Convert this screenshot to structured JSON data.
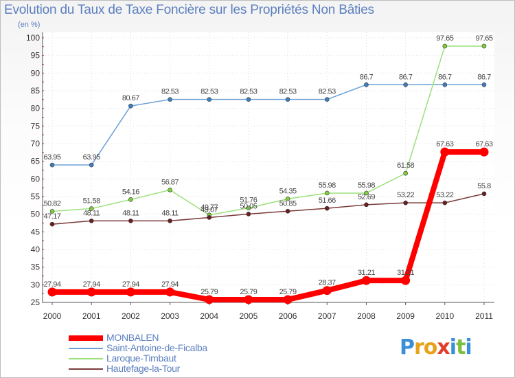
{
  "chart_data": {
    "type": "line",
    "title": "Evolution du Taux de Taxe Foncière sur les Propriétés Non Bâties",
    "ylabel": "(en %)",
    "xlabel": "",
    "categories": [
      "2000",
      "2001",
      "2002",
      "2003",
      "2004",
      "2005",
      "2006",
      "2007",
      "2008",
      "2009",
      "2010",
      "2011"
    ],
    "ylim": [
      25,
      100
    ],
    "yticks": [
      25,
      30,
      35,
      40,
      45,
      50,
      55,
      60,
      65,
      70,
      75,
      80,
      85,
      90,
      95,
      100
    ],
    "grid": true,
    "legend_position": "bottom-left",
    "series": [
      {
        "name": "MONBALEN",
        "color": "#ff0000",
        "point_color": "#ff0000",
        "style": "thick",
        "values": [
          27.94,
          27.94,
          27.94,
          27.94,
          25.79,
          25.79,
          25.79,
          28.37,
          31.21,
          31.21,
          67.63,
          67.63
        ],
        "labels": [
          "27.94",
          "27.94",
          "27.94",
          "27.94",
          "25.79",
          "25.79",
          "25.79",
          "28.37",
          "31.21",
          "31.21",
          "67.63",
          "67.63"
        ]
      },
      {
        "name": "Saint-Antoine-de-Ficalba",
        "color": "#6b9fd6",
        "point_color": "#3f7fbf",
        "style": "thin",
        "values": [
          63.95,
          63.95,
          80.67,
          82.53,
          82.53,
          82.53,
          82.53,
          82.53,
          86.7,
          86.7,
          86.7,
          86.7
        ],
        "labels": [
          "63.95",
          "63.95",
          "80.67",
          "82.53",
          "82.53",
          "82.53",
          "82.53",
          "82.53",
          "86.7",
          "86.7",
          "86.7",
          "86.7"
        ]
      },
      {
        "name": "Laroque-Timbaut",
        "color": "#9be07a",
        "point_color": "#7fcf3f",
        "style": "thin",
        "values": [
          50.82,
          51.58,
          54.16,
          56.87,
          49.77,
          51.76,
          54.35,
          55.98,
          55.98,
          61.58,
          97.65,
          97.65
        ],
        "labels": [
          "50.82",
          "51.58",
          "54.16",
          "56.87",
          "49.77",
          "51.76",
          "54.35",
          "55.98",
          "55.98",
          "61.58",
          "97.65",
          "97.65"
        ]
      },
      {
        "name": "Hautefage-la-Tour",
        "color": "#7a3a3a",
        "point_color": "#6a1f1f",
        "style": "thin",
        "values": [
          47.17,
          48.11,
          48.11,
          48.11,
          49.07,
          50.05,
          50.85,
          51.66,
          52.69,
          53.22,
          53.22,
          55.8
        ],
        "labels": [
          "47.17",
          "48.11",
          "48.11",
          "48.11",
          "49.07",
          "50.05",
          "50.85",
          "51.66",
          "52.69",
          "53.22",
          "53.22",
          "55.8"
        ]
      }
    ]
  },
  "logo": {
    "letters": [
      "P",
      "r",
      "o",
      "x",
      "i",
      "t",
      "i"
    ],
    "colors": [
      "#3a8fd8",
      "#e8a21a",
      "#e8a21a",
      "#e23c2a",
      "#3a8fd8",
      "#7fbf3f",
      "#3a8fd8"
    ]
  }
}
